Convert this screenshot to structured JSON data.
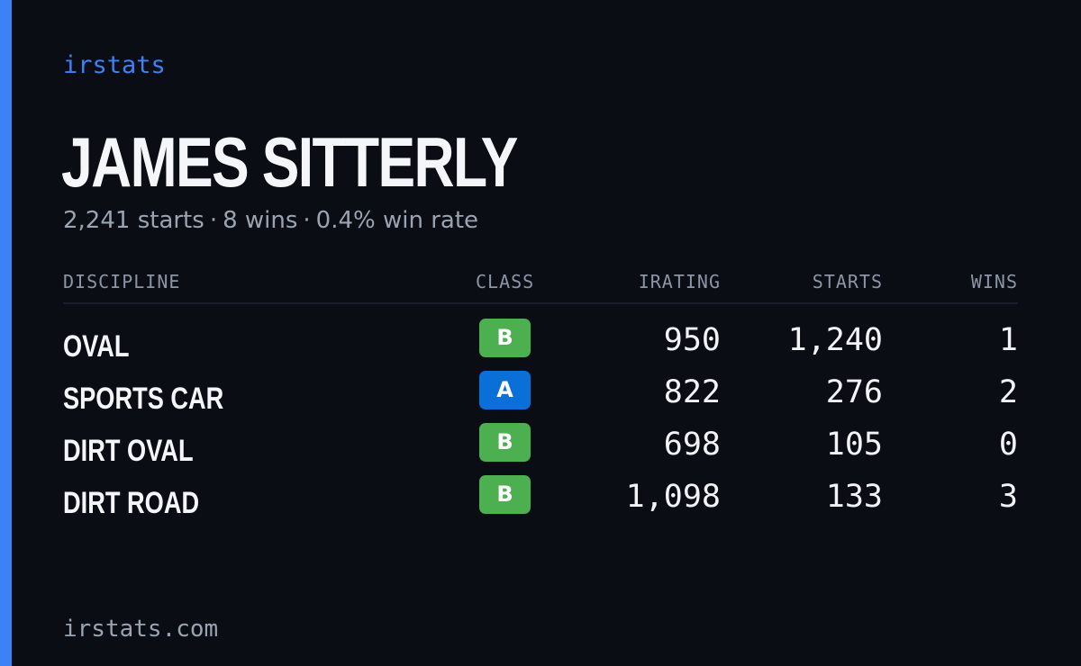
{
  "brand": "irstats",
  "driver": {
    "name": "JAMES SITTERLY",
    "summary": {
      "starts": "2,241 starts",
      "wins": "8 wins",
      "win_rate": "0.4% win rate",
      "separator": "·"
    }
  },
  "table": {
    "headers": {
      "discipline": "DISCIPLINE",
      "class": "CLASS",
      "irating": "IRATING",
      "starts": "STARTS",
      "wins": "WINS"
    },
    "rows": [
      {
        "discipline": "OVAL",
        "class": "B",
        "irating": "950",
        "starts": "1,240",
        "wins": "1"
      },
      {
        "discipline": "SPORTS CAR",
        "class": "A",
        "irating": "822",
        "starts": "276",
        "wins": "2"
      },
      {
        "discipline": "DIRT OVAL",
        "class": "B",
        "irating": "698",
        "starts": "105",
        "wins": "0"
      },
      {
        "discipline": "DIRT ROAD",
        "class": "B",
        "irating": "1,098",
        "starts": "133",
        "wins": "3"
      }
    ]
  },
  "class_colors": {
    "A": "#0a6fd6",
    "B": "#4caf50"
  },
  "accent_color": "#3b82f6",
  "footer": "irstats.com"
}
